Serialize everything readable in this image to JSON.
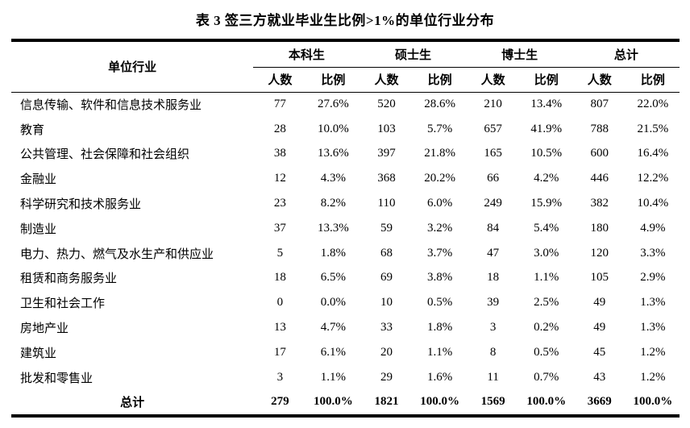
{
  "page": {
    "background_color": "#ffffff",
    "text_color": "#000000"
  },
  "title": "表 3 签三方就业毕业生比例>1%的单位行业分布",
  "table": {
    "row_header": "单位行业",
    "groups": [
      {
        "label": "本科生"
      },
      {
        "label": "硕士生"
      },
      {
        "label": "博士生"
      },
      {
        "label": "总计"
      }
    ],
    "subheaders": [
      "人数",
      "比例"
    ],
    "rows": [
      {
        "industry": "信息传输、软件和信息技术服务业",
        "values": [
          "77",
          "27.6%",
          "520",
          "28.6%",
          "210",
          "13.4%",
          "807",
          "22.0%"
        ]
      },
      {
        "industry": "教育",
        "values": [
          "28",
          "10.0%",
          "103",
          "5.7%",
          "657",
          "41.9%",
          "788",
          "21.5%"
        ]
      },
      {
        "industry": "公共管理、社会保障和社会组织",
        "values": [
          "38",
          "13.6%",
          "397",
          "21.8%",
          "165",
          "10.5%",
          "600",
          "16.4%"
        ]
      },
      {
        "industry": "金融业",
        "values": [
          "12",
          "4.3%",
          "368",
          "20.2%",
          "66",
          "4.2%",
          "446",
          "12.2%"
        ]
      },
      {
        "industry": "科学研究和技术服务业",
        "values": [
          "23",
          "8.2%",
          "110",
          "6.0%",
          "249",
          "15.9%",
          "382",
          "10.4%"
        ]
      },
      {
        "industry": "制造业",
        "values": [
          "37",
          "13.3%",
          "59",
          "3.2%",
          "84",
          "5.4%",
          "180",
          "4.9%"
        ]
      },
      {
        "industry": "电力、热力、燃气及水生产和供应业",
        "values": [
          "5",
          "1.8%",
          "68",
          "3.7%",
          "47",
          "3.0%",
          "120",
          "3.3%"
        ]
      },
      {
        "industry": "租赁和商务服务业",
        "values": [
          "18",
          "6.5%",
          "69",
          "3.8%",
          "18",
          "1.1%",
          "105",
          "2.9%"
        ]
      },
      {
        "industry": "卫生和社会工作",
        "values": [
          "0",
          "0.0%",
          "10",
          "0.5%",
          "39",
          "2.5%",
          "49",
          "1.3%"
        ]
      },
      {
        "industry": "房地产业",
        "values": [
          "13",
          "4.7%",
          "33",
          "1.8%",
          "3",
          "0.2%",
          "49",
          "1.3%"
        ]
      },
      {
        "industry": "建筑业",
        "values": [
          "17",
          "6.1%",
          "20",
          "1.1%",
          "8",
          "0.5%",
          "45",
          "1.2%"
        ]
      },
      {
        "industry": "批发和零售业",
        "values": [
          "3",
          "1.1%",
          "29",
          "1.6%",
          "11",
          "0.7%",
          "43",
          "1.2%"
        ]
      }
    ],
    "total_row": {
      "label": "总计",
      "values": [
        "279",
        "100.0%",
        "1821",
        "100.0%",
        "1569",
        "100.0%",
        "3669",
        "100.0%"
      ]
    }
  }
}
